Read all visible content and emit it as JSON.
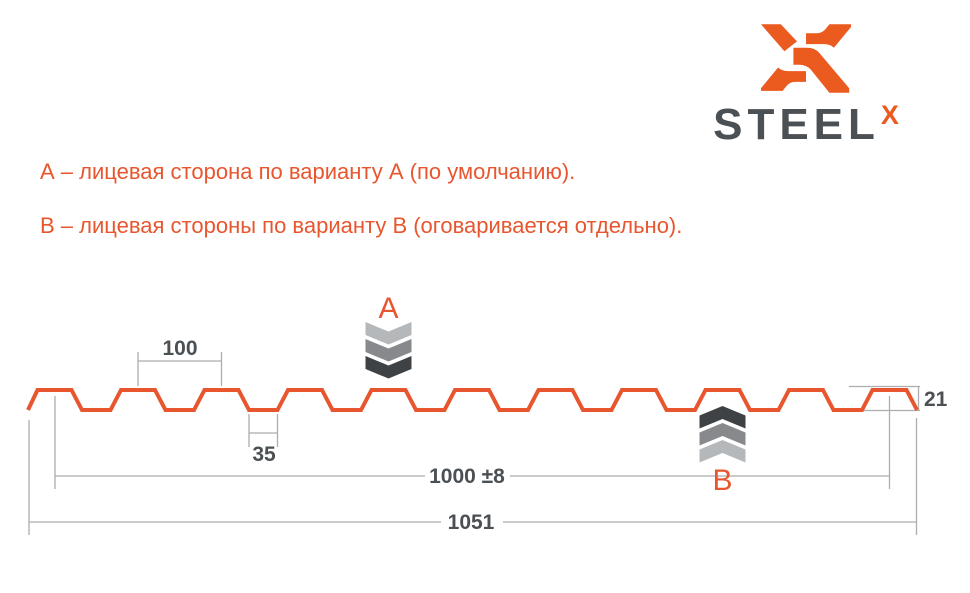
{
  "logo": {
    "wordmark": "STEEL",
    "wordmark_sup": "X"
  },
  "notes": {
    "line_a": "А – лицевая сторона по варианту А (по умолчанию).",
    "line_b": "В – лицевая стороны по варианту В (оговаривается отдельно)."
  },
  "markers": {
    "top": "А",
    "bottom": "В"
  },
  "dimensions": {
    "pitch": "100",
    "valley_width": "35",
    "coverage_width": "1000 ±8",
    "overall_width": "1051",
    "profile_height": "21"
  },
  "colors": {
    "accent": "#E7562E",
    "accent_logo": "#EB5A1F",
    "text_dark": "#4B5055",
    "dim_line": "#ABADAE",
    "chevron_light": "#B5B8BA",
    "chevron_mid": "#87898C",
    "chevron_dark": "#3E4245"
  }
}
